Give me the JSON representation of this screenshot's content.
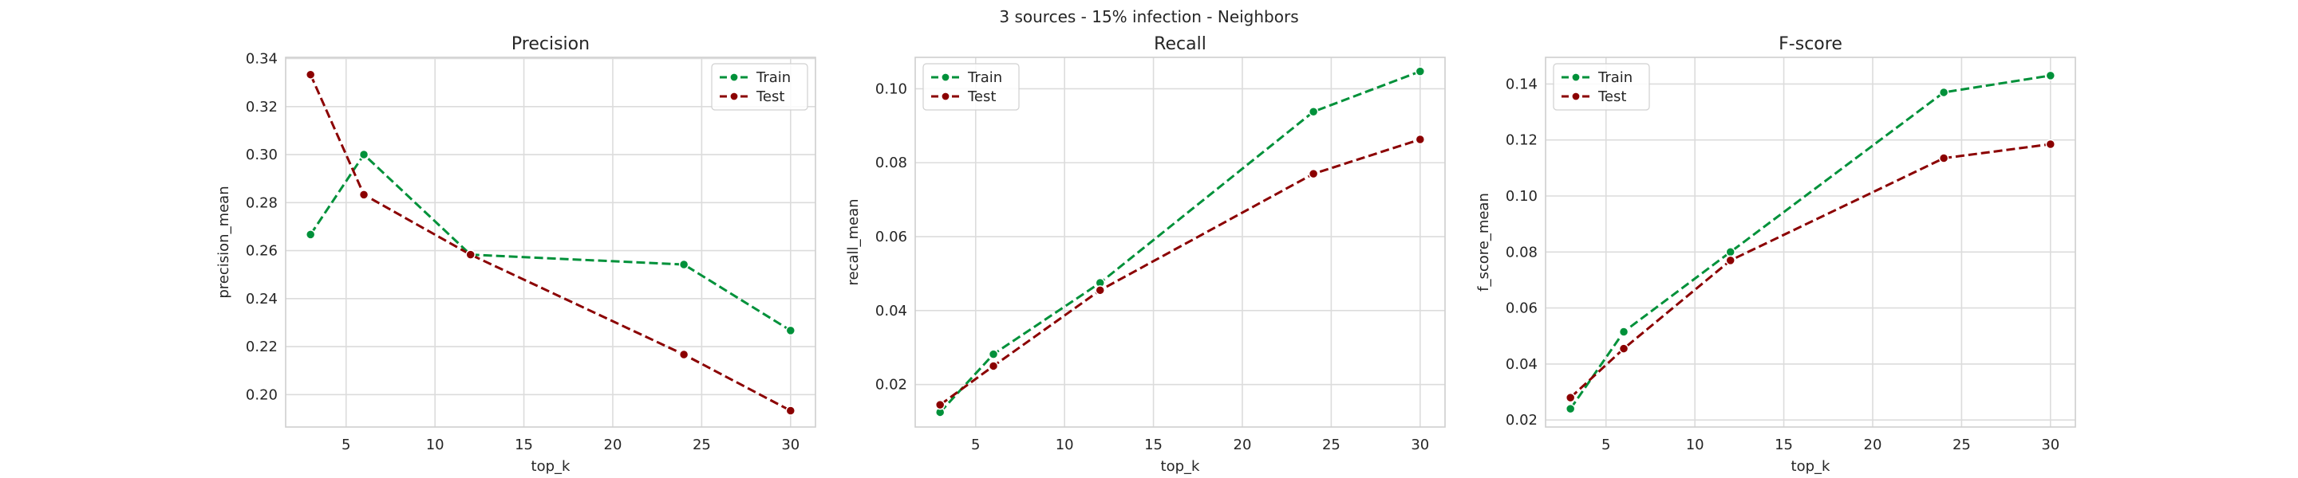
{
  "figure": {
    "suptitle": "3 sources - 15% infection - Neighbors"
  },
  "colors": {
    "train": "#00913a",
    "test": "#8b0000"
  },
  "chart_data": [
    {
      "type": "line",
      "title": "Precision",
      "xlabel": "top_k",
      "ylabel": "precision_mean",
      "x": [
        3,
        6,
        12,
        24,
        30
      ],
      "xlim": [
        1.6,
        31.4
      ],
      "ylim": [
        0.1865,
        0.3405
      ],
      "xticks": [
        5,
        10,
        15,
        20,
        25,
        30
      ],
      "yticks": [
        0.2,
        0.22,
        0.24,
        0.26,
        0.28,
        0.3,
        0.32,
        0.34
      ],
      "ytick_labels": [
        "0.20",
        "0.22",
        "0.24",
        "0.26",
        "0.28",
        "0.30",
        "0.32",
        "0.34"
      ],
      "grid": true,
      "legend": "upper right",
      "series": [
        {
          "name": "Train",
          "values": [
            0.2667,
            0.3,
            0.2583,
            0.2542,
            0.2267
          ]
        },
        {
          "name": "Test",
          "values": [
            0.3333,
            0.2833,
            0.2583,
            0.2167,
            0.1933
          ]
        }
      ]
    },
    {
      "type": "line",
      "title": "Recall",
      "xlabel": "top_k",
      "ylabel": "recall_mean",
      "x": [
        3,
        6,
        12,
        24,
        30
      ],
      "xlim": [
        1.6,
        31.4
      ],
      "ylim": [
        0.0085,
        0.1085
      ],
      "xticks": [
        5,
        10,
        15,
        20,
        25,
        30
      ],
      "yticks": [
        0.02,
        0.04,
        0.06,
        0.08,
        0.1
      ],
      "ytick_labels": [
        "0.02",
        "0.04",
        "0.06",
        "0.08",
        "0.10"
      ],
      "grid": true,
      "legend": "upper left",
      "series": [
        {
          "name": "Train",
          "values": [
            0.0125,
            0.0282,
            0.0475,
            0.0938,
            0.1047
          ]
        },
        {
          "name": "Test",
          "values": [
            0.0145,
            0.025,
            0.0455,
            0.077,
            0.0863
          ]
        }
      ]
    },
    {
      "type": "line",
      "title": "F-score",
      "xlabel": "top_k",
      "ylabel": "f_score_mean",
      "x": [
        3,
        6,
        12,
        24,
        30
      ],
      "xlim": [
        1.6,
        31.4
      ],
      "ylim": [
        0.0175,
        0.1495
      ],
      "xticks": [
        5,
        10,
        15,
        20,
        25,
        30
      ],
      "yticks": [
        0.02,
        0.04,
        0.06,
        0.08,
        0.1,
        0.12,
        0.14
      ],
      "ytick_labels": [
        "0.02",
        "0.04",
        "0.06",
        "0.08",
        "0.10",
        "0.12",
        "0.14"
      ],
      "grid": true,
      "legend": "upper left",
      "series": [
        {
          "name": "Train",
          "values": [
            0.024,
            0.0515,
            0.08,
            0.137,
            0.143
          ]
        },
        {
          "name": "Test",
          "values": [
            0.028,
            0.0455,
            0.077,
            0.1135,
            0.1185
          ]
        }
      ]
    }
  ]
}
